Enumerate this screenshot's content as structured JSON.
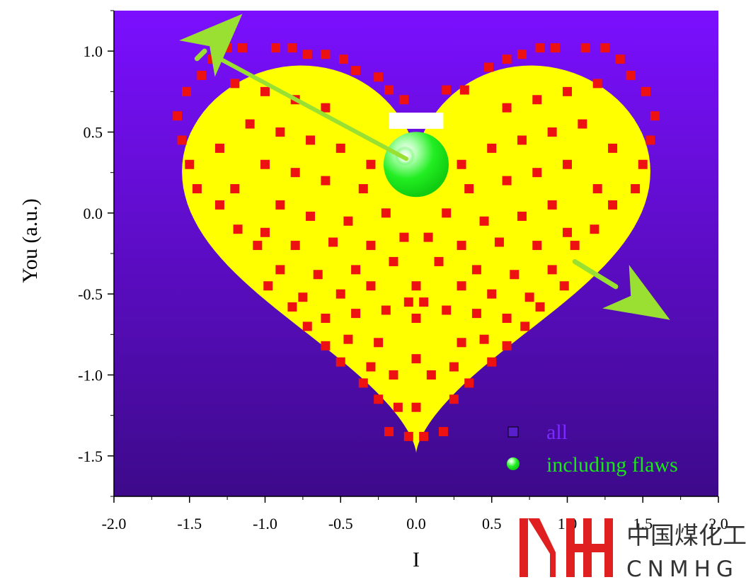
{
  "chart_data": {
    "type": "scatter",
    "xlabel": "I",
    "ylabel": "You (a.u.)",
    "xlim": [
      -2.0,
      2.0
    ],
    "ylim": [
      -1.75,
      1.25
    ],
    "xticks": [
      "-2.0",
      "-1.5",
      "-1.0",
      "-0.5",
      "0.0",
      "0.5",
      "1.0",
      "1.5",
      "2.0"
    ],
    "yticks": [
      "1.0",
      "0.5",
      "0.0",
      "-0.5",
      "-1.0",
      "-1.5"
    ],
    "background_gradient": [
      "#7b0fff",
      "#3d0a8a"
    ],
    "legend_placement": "bottom-right",
    "series": [
      {
        "name": "all",
        "marker": "square",
        "color": "#e8e8ff",
        "legend_color": "#7a2bff",
        "description_fill": "#ffff00",
        "points": [
          [
            -0.02,
            0.63
          ],
          [
            0.06,
            0.63
          ],
          [
            0.12,
            0.55
          ],
          [
            -0.1,
            0.55
          ]
        ]
      },
      {
        "name": "including flaws",
        "marker": "circle",
        "color": "#11ee11",
        "legend_color": "#18e818",
        "points": [
          [
            0.0,
            0.3
          ]
        ]
      }
    ],
    "highlight_points": {
      "color": "#ee1111",
      "points": [
        [
          -1.25,
          1.02
        ],
        [
          -1.15,
          1.02
        ],
        [
          -0.93,
          1.02
        ],
        [
          -0.82,
          1.02
        ],
        [
          -0.72,
          0.98
        ],
        [
          -0.6,
          0.98
        ],
        [
          -0.48,
          0.95
        ],
        [
          -0.4,
          0.88
        ],
        [
          -0.25,
          0.84
        ],
        [
          -0.18,
          0.76
        ],
        [
          -0.08,
          0.7
        ],
        [
          0.2,
          0.76
        ],
        [
          0.32,
          0.76
        ],
        [
          0.48,
          0.9
        ],
        [
          0.6,
          0.95
        ],
        [
          0.7,
          0.98
        ],
        [
          0.82,
          1.02
        ],
        [
          0.92,
          1.02
        ],
        [
          1.12,
          1.02
        ],
        [
          1.25,
          1.02
        ],
        [
          1.35,
          0.95
        ],
        [
          1.42,
          0.85
        ],
        [
          1.52,
          0.75
        ],
        [
          1.58,
          0.6
        ],
        [
          1.55,
          0.45
        ],
        [
          1.5,
          0.3
        ],
        [
          1.45,
          0.15
        ],
        [
          1.3,
          0.05
        ],
        [
          1.18,
          -0.1
        ],
        [
          1.05,
          -0.2
        ],
        [
          0.98,
          -0.45
        ],
        [
          0.82,
          -0.58
        ],
        [
          0.72,
          -0.7
        ],
        [
          0.6,
          -0.82
        ],
        [
          0.5,
          -0.92
        ],
        [
          0.35,
          -1.05
        ],
        [
          0.25,
          -1.15
        ],
        [
          0.18,
          -1.35
        ],
        [
          0.05,
          -1.38
        ],
        [
          -0.05,
          -1.38
        ],
        [
          -0.18,
          -1.35
        ],
        [
          -0.25,
          -1.15
        ],
        [
          -0.35,
          -1.05
        ],
        [
          -0.5,
          -0.92
        ],
        [
          -0.6,
          -0.82
        ],
        [
          -0.72,
          -0.7
        ],
        [
          -0.82,
          -0.58
        ],
        [
          -0.98,
          -0.45
        ],
        [
          -1.05,
          -0.2
        ],
        [
          -1.18,
          -0.1
        ],
        [
          -1.3,
          0.05
        ],
        [
          -1.45,
          0.15
        ],
        [
          -1.5,
          0.3
        ],
        [
          -1.55,
          0.45
        ],
        [
          -1.58,
          0.6
        ],
        [
          -1.52,
          0.75
        ],
        [
          -1.42,
          0.85
        ],
        [
          -1.35,
          0.95
        ],
        [
          -1.2,
          0.8
        ],
        [
          -1.0,
          0.75
        ],
        [
          -0.8,
          0.7
        ],
        [
          -0.6,
          0.65
        ],
        [
          -1.1,
          0.55
        ],
        [
          -0.9,
          0.5
        ],
        [
          -0.7,
          0.45
        ],
        [
          -0.5,
          0.4
        ],
        [
          -1.3,
          0.4
        ],
        [
          -1.0,
          0.3
        ],
        [
          -0.8,
          0.25
        ],
        [
          -0.6,
          0.2
        ],
        [
          -0.35,
          0.15
        ],
        [
          -1.2,
          0.15
        ],
        [
          -0.9,
          0.05
        ],
        [
          -0.7,
          -0.02
        ],
        [
          -0.45,
          -0.05
        ],
        [
          -0.2,
          0.0
        ],
        [
          -1.0,
          -0.12
        ],
        [
          -0.8,
          -0.2
        ],
        [
          -0.55,
          -0.18
        ],
        [
          -0.3,
          -0.2
        ],
        [
          -0.08,
          -0.15
        ],
        [
          -0.9,
          -0.35
        ],
        [
          -0.65,
          -0.38
        ],
        [
          -0.4,
          -0.35
        ],
        [
          -0.15,
          -0.3
        ],
        [
          -0.75,
          -0.52
        ],
        [
          -0.5,
          -0.5
        ],
        [
          -0.3,
          -0.45
        ],
        [
          -0.6,
          -0.65
        ],
        [
          -0.4,
          -0.62
        ],
        [
          -0.2,
          -0.6
        ],
        [
          -0.45,
          -0.78
        ],
        [
          -0.25,
          -0.8
        ],
        [
          -0.3,
          -0.95
        ],
        [
          -0.15,
          -1.0
        ],
        [
          -0.12,
          -1.2
        ],
        [
          0.0,
          -1.2
        ],
        [
          0.1,
          -1.0
        ],
        [
          0.25,
          -0.95
        ],
        [
          0.3,
          -0.8
        ],
        [
          0.45,
          -0.78
        ],
        [
          0.2,
          -0.6
        ],
        [
          0.4,
          -0.62
        ],
        [
          0.6,
          -0.65
        ],
        [
          0.3,
          -0.45
        ],
        [
          0.5,
          -0.5
        ],
        [
          0.75,
          -0.52
        ],
        [
          0.15,
          -0.3
        ],
        [
          0.4,
          -0.35
        ],
        [
          0.65,
          -0.38
        ],
        [
          0.9,
          -0.35
        ],
        [
          0.08,
          -0.15
        ],
        [
          0.3,
          -0.2
        ],
        [
          0.55,
          -0.18
        ],
        [
          0.8,
          -0.2
        ],
        [
          1.0,
          -0.12
        ],
        [
          0.2,
          0.0
        ],
        [
          0.45,
          -0.05
        ],
        [
          0.7,
          -0.02
        ],
        [
          0.9,
          0.05
        ],
        [
          1.2,
          0.15
        ],
        [
          0.35,
          0.15
        ],
        [
          0.6,
          0.2
        ],
        [
          0.8,
          0.25
        ],
        [
          1.0,
          0.3
        ],
        [
          1.3,
          0.4
        ],
        [
          0.5,
          0.4
        ],
        [
          0.7,
          0.45
        ],
        [
          0.9,
          0.5
        ],
        [
          1.1,
          0.55
        ],
        [
          0.6,
          0.65
        ],
        [
          0.8,
          0.7
        ],
        [
          1.0,
          0.75
        ],
        [
          1.2,
          0.8
        ],
        [
          0.02,
          0.42
        ],
        [
          0.12,
          0.35
        ],
        [
          0.3,
          0.3
        ],
        [
          -0.3,
          0.3
        ],
        [
          0.0,
          -0.65
        ],
        [
          0.0,
          -0.45
        ],
        [
          -0.05,
          -0.55
        ],
        [
          0.05,
          -0.55
        ],
        [
          0.0,
          -0.9
        ]
      ]
    },
    "legend": [
      {
        "label": "all",
        "color": "#7a2bff"
      },
      {
        "label": "including flaws",
        "color": "#18e818"
      }
    ],
    "arrows": [
      {
        "from": [
          -1.4,
          1.0
        ],
        "to": [
          -1.15,
          1.23
        ],
        "color": "#99e033"
      },
      {
        "from": [
          1.05,
          -0.3
        ],
        "to": [
          1.68,
          -0.66
        ],
        "color": "#99e033"
      }
    ]
  },
  "logo": {
    "left_glyph": "YH",
    "cn_text": "中国煤化工",
    "en_text": "CNMHG",
    "color": "#e02020"
  }
}
